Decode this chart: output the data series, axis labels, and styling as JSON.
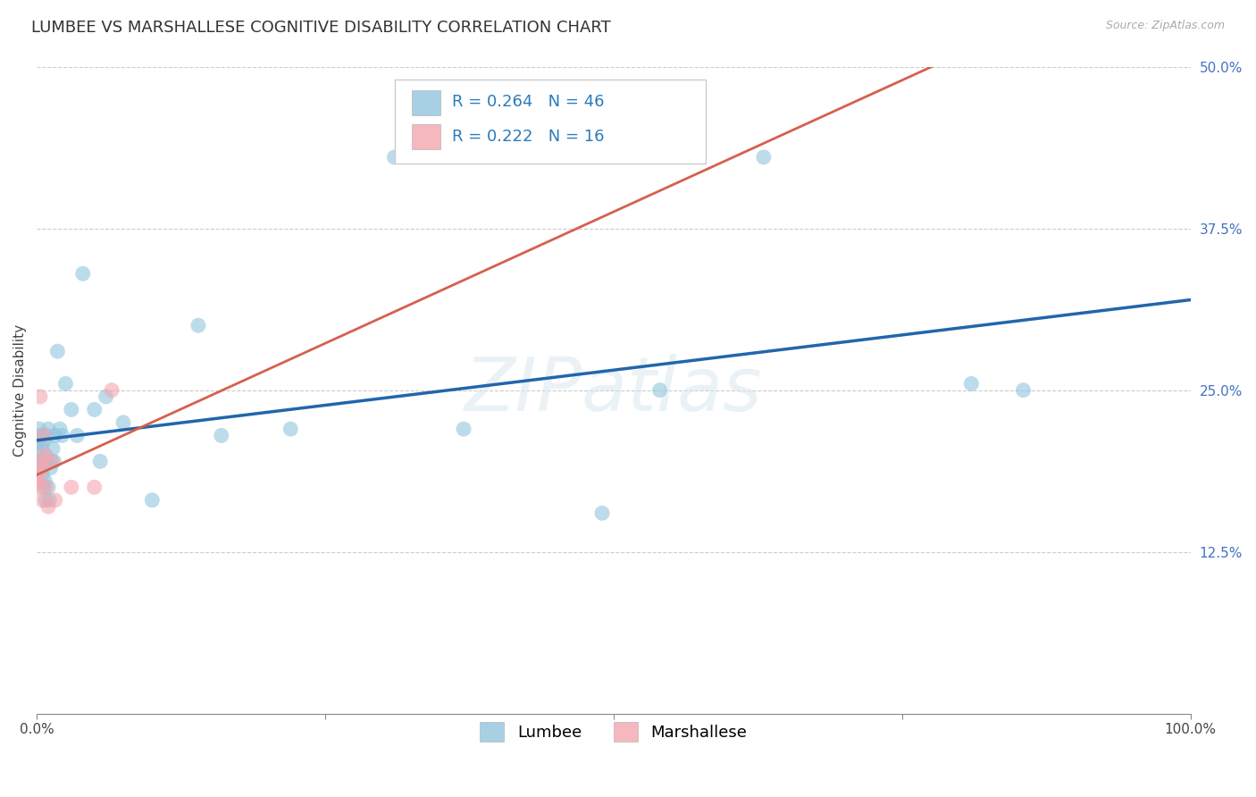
{
  "title": "LUMBEE VS MARSHALLESE COGNITIVE DISABILITY CORRELATION CHART",
  "source": "Source: ZipAtlas.com",
  "ylabel": "Cognitive Disability",
  "xlim": [
    0,
    1.0
  ],
  "ylim": [
    0,
    0.5
  ],
  "xtick_positions": [
    0.0,
    0.25,
    0.5,
    0.75,
    1.0
  ],
  "xticklabels": [
    "0.0%",
    "",
    "",
    "",
    "100.0%"
  ],
  "ytick_positions": [
    0.125,
    0.25,
    0.375,
    0.5
  ],
  "ytick_labels": [
    "12.5%",
    "25.0%",
    "37.5%",
    "50.0%"
  ],
  "lumbee_R": 0.264,
  "lumbee_N": 46,
  "marshallese_R": 0.222,
  "marshallese_N": 16,
  "lumbee_color": "#92c5de",
  "marshallese_color": "#f4a7b0",
  "lumbee_line_color": "#2166ac",
  "marshallese_line_color": "#d6604d",
  "background_color": "#ffffff",
  "watermark_text": "ZIPatlas",
  "title_fontsize": 13,
  "axis_label_fontsize": 11,
  "tick_fontsize": 11,
  "legend_fontsize": 13,
  "lumbee_x": [
    0.001,
    0.002,
    0.002,
    0.003,
    0.003,
    0.004,
    0.004,
    0.005,
    0.005,
    0.006,
    0.006,
    0.007,
    0.007,
    0.008,
    0.008,
    0.009,
    0.01,
    0.01,
    0.011,
    0.012,
    0.013,
    0.014,
    0.015,
    0.016,
    0.018,
    0.02,
    0.022,
    0.025,
    0.03,
    0.035,
    0.04,
    0.05,
    0.055,
    0.06,
    0.075,
    0.1,
    0.14,
    0.16,
    0.22,
    0.31,
    0.37,
    0.49,
    0.54,
    0.63,
    0.81,
    0.855
  ],
  "lumbee_y": [
    0.21,
    0.2,
    0.22,
    0.195,
    0.215,
    0.205,
    0.19,
    0.185,
    0.215,
    0.175,
    0.21,
    0.18,
    0.195,
    0.2,
    0.165,
    0.215,
    0.175,
    0.22,
    0.165,
    0.19,
    0.195,
    0.205,
    0.195,
    0.215,
    0.28,
    0.22,
    0.215,
    0.255,
    0.235,
    0.215,
    0.34,
    0.235,
    0.195,
    0.245,
    0.225,
    0.165,
    0.3,
    0.215,
    0.22,
    0.43,
    0.22,
    0.155,
    0.25,
    0.43,
    0.255,
    0.25
  ],
  "marshallese_x": [
    0.001,
    0.002,
    0.002,
    0.003,
    0.004,
    0.005,
    0.005,
    0.006,
    0.007,
    0.008,
    0.01,
    0.013,
    0.016,
    0.03,
    0.05,
    0.065
  ],
  "marshallese_y": [
    0.185,
    0.18,
    0.175,
    0.245,
    0.195,
    0.19,
    0.165,
    0.215,
    0.2,
    0.175,
    0.16,
    0.195,
    0.165,
    0.175,
    0.175,
    0.25
  ]
}
